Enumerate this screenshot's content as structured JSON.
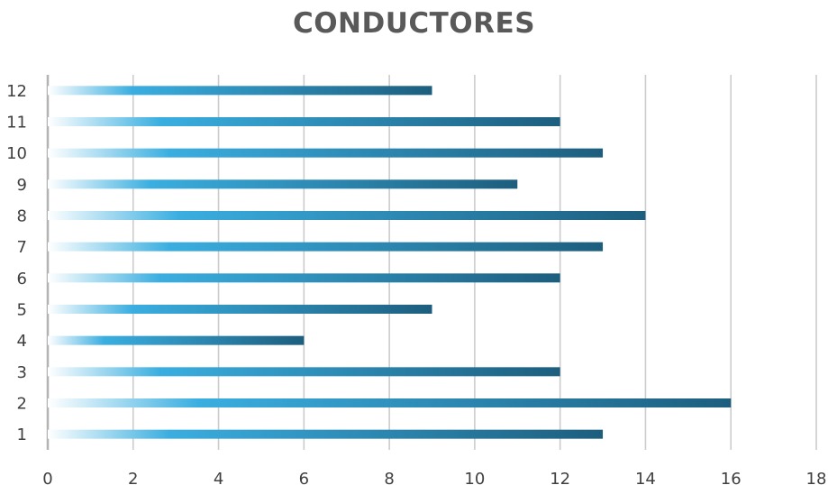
{
  "chart_data": {
    "type": "bar",
    "orientation": "horizontal",
    "title": "CONDUCTORES",
    "xlabel": "",
    "ylabel": "",
    "categories": [
      "1",
      "2",
      "3",
      "4",
      "5",
      "6",
      "7",
      "8",
      "9",
      "10",
      "11",
      "12"
    ],
    "values": [
      13,
      16,
      12,
      6,
      9,
      12,
      13,
      14,
      11,
      13,
      12,
      9
    ],
    "xlim": [
      0,
      18
    ],
    "xticks": [
      "0",
      "2",
      "4",
      "6",
      "8",
      "10",
      "12",
      "14",
      "16",
      "18"
    ],
    "grid": "vertical",
    "legend": "none",
    "colors": {
      "bar_start": "#ffffff",
      "bar_mid": "#3aaee0",
      "bar_end": "#1d5e7e",
      "grid": "#cccccc",
      "axis": "#b3b3b3",
      "title": "#595959",
      "text": "#404040"
    }
  }
}
